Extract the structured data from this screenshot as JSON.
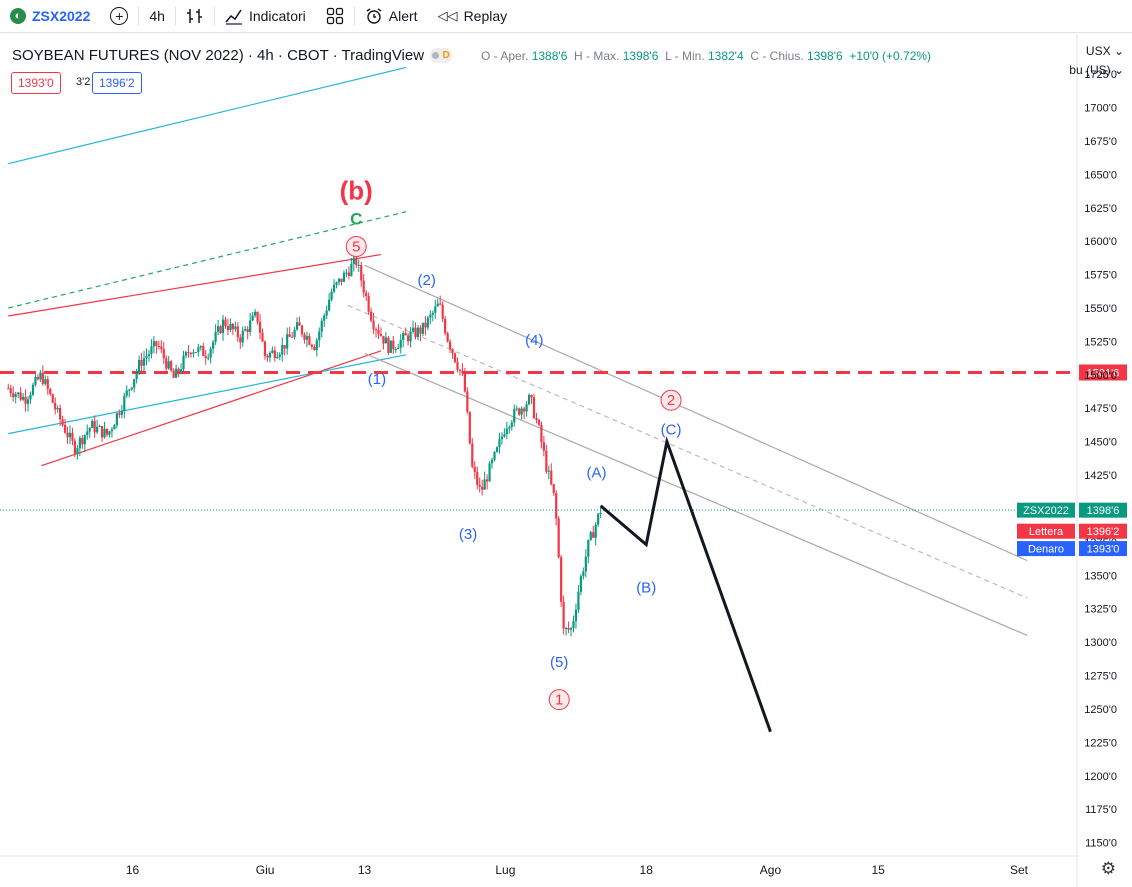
{
  "toolbar": {
    "symbol": "ZSX2022",
    "interval": "4h",
    "indicators_label": "Indicatori",
    "alert_label": "Alert",
    "replay_label": "Replay"
  },
  "legend": {
    "title": "SOYBEAN FUTURES (NOV 2022) · 4h · CBOT · TradingView",
    "badge_letter": "D",
    "ohlc_o_label": "O - Aper.",
    "ohlc_o": "1388'6",
    "ohlc_h_label": "H - Max.",
    "ohlc_h": "1398'6",
    "ohlc_l_label": "L - Min.",
    "ohlc_l": "1382'4",
    "ohlc_c_label": "C - Chius.",
    "ohlc_c": "1398'6",
    "change": "+10'0 (+0.72%)",
    "sell_price": "1393'0",
    "spread": "3'2",
    "buy_price": "1396'2"
  },
  "currency": {
    "code": "USX",
    "unit": "bu (US)"
  },
  "colors": {
    "up": "#089981",
    "down": "#f23645",
    "blue": "#2962ff",
    "cyan": "#22b7d6",
    "red_line": "#f23645",
    "green_label": "#26a65b",
    "ink": "#131722"
  },
  "chart_data": {
    "type": "candlestick",
    "y_ticks": [
      "1725'0",
      "1700'0",
      "1675'0",
      "1650'0",
      "1625'0",
      "1600'0",
      "1575'0",
      "1550'0",
      "1525'0",
      "1500'0",
      "1475'0",
      "1450'0",
      "1425'0",
      "1400'0",
      "1375'0",
      "1350'0",
      "1325'0",
      "1300'0",
      "1275'0",
      "1250'0",
      "1225'0",
      "1200'0",
      "1175'0",
      "1150'0"
    ],
    "y_tick_values": [
      1725,
      1700,
      1675,
      1650,
      1625,
      1600,
      1575,
      1550,
      1525,
      1500,
      1475,
      1450,
      1425,
      1400,
      1375,
      1350,
      1325,
      1300,
      1275,
      1250,
      1225,
      1200,
      1175,
      1150
    ],
    "x_ticks": [
      "16",
      "Giu",
      "13",
      "Lug",
      "18",
      "Ago",
      "15",
      "Set"
    ],
    "x_tick_days": [
      16,
      32,
      44,
      61,
      78,
      93,
      106,
      123
    ],
    "price_path": [
      [
        1,
        1490
      ],
      [
        3,
        1482
      ],
      [
        5,
        1500
      ],
      [
        7,
        1470
      ],
      [
        9,
        1445
      ],
      [
        11,
        1462
      ],
      [
        13,
        1455
      ],
      [
        15,
        1482
      ],
      [
        17,
        1510
      ],
      [
        19,
        1523
      ],
      [
        21,
        1497
      ],
      [
        23,
        1520
      ],
      [
        25,
        1516
      ],
      [
        27,
        1540
      ],
      [
        29,
        1528
      ],
      [
        31,
        1545
      ],
      [
        32,
        1514
      ],
      [
        34,
        1520
      ],
      [
        36,
        1536
      ],
      [
        38,
        1522
      ],
      [
        40,
        1562
      ],
      [
        42,
        1578
      ],
      [
        43,
        1585
      ],
      [
        45,
        1540
      ],
      [
        47,
        1520
      ],
      [
        49,
        1528
      ],
      [
        51,
        1534
      ],
      [
        53,
        1553
      ],
      [
        54,
        1528
      ],
      [
        56,
        1495
      ],
      [
        57,
        1430
      ],
      [
        58,
        1412
      ],
      [
        60,
        1443
      ],
      [
        61,
        1462
      ],
      [
        62,
        1470
      ],
      [
        64,
        1482
      ],
      [
        65,
        1460
      ],
      [
        66,
        1430
      ],
      [
        67,
        1405
      ],
      [
        68,
        1308
      ],
      [
        69,
        1310
      ],
      [
        70,
        1345
      ],
      [
        71,
        1372
      ],
      [
        72,
        1390
      ],
      [
        72.5,
        1398.75
      ]
    ],
    "series": [
      {
        "name": "(A)-(B)-(C) projection",
        "points": [
          [
            72.5,
            1402
          ],
          [
            78,
            1373
          ],
          [
            80.5,
            1450
          ],
          [
            93,
            1233
          ]
        ]
      }
    ],
    "annotations": [
      {
        "text": "(b)",
        "day": 43,
        "price": 1638,
        "color": "#f23645",
        "size": 26
      },
      {
        "text": "C",
        "day": 43,
        "price": 1617,
        "color": "#26a65b",
        "size": 17
      },
      {
        "text": "5",
        "day": 43,
        "price": 1596,
        "color": "#f23645",
        "circle": true
      },
      {
        "text": "(2)",
        "day": 51.5,
        "price": 1571,
        "color": "#2962ff"
      },
      {
        "text": "(1)",
        "day": 45.5,
        "price": 1497,
        "color": "#2962ff"
      },
      {
        "text": "(4)",
        "day": 64.5,
        "price": 1526,
        "color": "#2962ff"
      },
      {
        "text": "(3)",
        "day": 56.5,
        "price": 1381,
        "color": "#2962ff"
      },
      {
        "text": "(5)",
        "day": 67.5,
        "price": 1285,
        "color": "#2962ff"
      },
      {
        "text": "1",
        "day": 67.5,
        "price": 1257,
        "color": "#f23645",
        "circle": true
      },
      {
        "text": "(A)",
        "day": 72,
        "price": 1427,
        "color": "#2962ff"
      },
      {
        "text": "(B)",
        "day": 78,
        "price": 1341,
        "color": "#2962ff"
      },
      {
        "text": "2",
        "day": 81,
        "price": 1481,
        "color": "#f23645",
        "circle": true
      },
      {
        "text": "(C)",
        "day": 81,
        "price": 1459,
        "color": "#2962ff"
      }
    ],
    "levels": [
      {
        "name": "horizontal resistance",
        "price": 1501.75,
        "label": "1501'6",
        "color": "#f23645"
      }
    ],
    "price_tags": [
      {
        "name": "ZSX2022",
        "value": "1398'6",
        "price": 1398.75,
        "color": "#089981"
      },
      {
        "name": "Lettera",
        "value": "1396'2",
        "price": 1383,
        "color": "#f23645"
      },
      {
        "name": "Denaro",
        "value": "1393'0",
        "price": 1370,
        "color": "#2962ff"
      }
    ],
    "trend_lines": [
      {
        "from": [
          1,
          1658
        ],
        "to": [
          49,
          1730
        ],
        "color": "#22b7d6",
        "style": "solid"
      },
      {
        "from": [
          1,
          1550
        ],
        "to": [
          49,
          1622
        ],
        "color": "#26a65b",
        "style": "dashed"
      },
      {
        "from": [
          1,
          1544
        ],
        "to": [
          46,
          1590
        ],
        "color": "#f23645",
        "style": "solid"
      },
      {
        "from": [
          5,
          1432
        ],
        "to": [
          46,
          1518
        ],
        "color": "#f23645",
        "style": "solid"
      },
      {
        "from": [
          1,
          1456
        ],
        "to": [
          49,
          1515
        ],
        "color": "#22b7d6",
        "style": "solid"
      },
      {
        "from": [
          44,
          1582
        ],
        "to": [
          124,
          1361
        ],
        "color": "#aaaaaa",
        "style": "solid"
      },
      {
        "from": [
          42,
          1552
        ],
        "to": [
          124,
          1333
        ],
        "color": "#bbbbbb",
        "style": "dashed"
      },
      {
        "from": [
          44,
          1516
        ],
        "to": [
          124,
          1305
        ],
        "color": "#aaaaaa",
        "style": "solid"
      }
    ],
    "ylim": [
      1140,
      1755
    ],
    "xlim": [
      0,
      130
    ],
    "grid": false,
    "legend": "top-left"
  }
}
